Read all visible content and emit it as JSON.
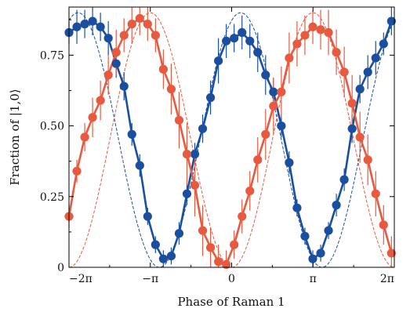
{
  "chart_data": {
    "type": "line",
    "title": "",
    "xlabel": "Phase of Raman 1",
    "ylabel": "Fraction of |1,0⟩",
    "xlim": [
      -6.2832,
      6.2832
    ],
    "ylim": [
      0,
      0.92
    ],
    "x_ticks": [
      {
        "value": -6.2832,
        "label": "−2π"
      },
      {
        "value": -3.1416,
        "label": "−π"
      },
      {
        "value": 0,
        "label": "0"
      },
      {
        "value": 3.1416,
        "label": "π"
      },
      {
        "value": 6.2832,
        "label": "2π"
      }
    ],
    "y_ticks": [
      {
        "value": 0,
        "label": "0"
      },
      {
        "value": 0.25,
        "label": "0.25"
      },
      {
        "value": 0.5,
        "label": "0.50"
      },
      {
        "value": 0.75,
        "label": "0.75"
      }
    ],
    "grid": false,
    "legend": "none",
    "series": [
      {
        "color": "#1a4fa0",
        "x": [
          -6.283,
          -5.979,
          -5.675,
          -5.372,
          -5.068,
          -4.764,
          -4.46,
          -4.157,
          -3.853,
          -3.549,
          -3.245,
          -2.942,
          -2.638,
          -2.334,
          -2.03,
          -1.727,
          -1.423,
          -1.119,
          -0.815,
          -0.511,
          -0.208,
          0.096,
          0.4,
          0.704,
          1.007,
          1.311,
          1.615,
          1.919,
          2.223,
          2.526,
          2.83,
          3.134,
          3.438,
          3.741,
          4.045,
          4.349,
          4.653,
          4.956,
          5.26,
          5.564,
          5.868,
          6.172
        ],
        "y": [
          0.83,
          0.85,
          0.86,
          0.87,
          0.85,
          0.81,
          0.72,
          0.64,
          0.47,
          0.36,
          0.18,
          0.08,
          0.03,
          0.04,
          0.12,
          0.26,
          0.4,
          0.49,
          0.6,
          0.73,
          0.8,
          0.81,
          0.83,
          0.8,
          0.76,
          0.68,
          0.62,
          0.5,
          0.37,
          0.21,
          0.11,
          0.03,
          0.05,
          0.13,
          0.22,
          0.31,
          0.49,
          0.63,
          0.69,
          0.74,
          0.79,
          0.87
        ],
        "err": [
          0.04,
          0.06,
          0.05,
          0.05,
          0.05,
          0.06,
          0.05,
          0.05,
          0.04,
          0.04,
          0.03,
          0.03,
          0.03,
          0.03,
          0.04,
          0.04,
          0.04,
          0.05,
          0.06,
          0.08,
          0.06,
          0.05,
          0.06,
          0.06,
          0.07,
          0.07,
          0.05,
          0.04,
          0.04,
          0.03,
          0.03,
          0.03,
          0.03,
          0.03,
          0.04,
          0.04,
          0.05,
          0.05,
          0.06,
          0.06,
          0.04,
          0.05
        ]
      },
      {
        "color": "#e85a40",
        "x": [
          -6.283,
          -5.979,
          -5.675,
          -5.372,
          -5.068,
          -4.764,
          -4.46,
          -4.157,
          -3.853,
          -3.549,
          -3.245,
          -2.942,
          -2.638,
          -2.334,
          -2.03,
          -1.727,
          -1.423,
          -1.119,
          -0.815,
          -0.511,
          -0.208,
          0.096,
          0.4,
          0.704,
          1.007,
          1.311,
          1.615,
          1.919,
          2.223,
          2.526,
          2.83,
          3.134,
          3.438,
          3.741,
          4.045,
          4.349,
          4.653,
          4.956,
          5.26,
          5.564,
          5.868,
          6.172
        ],
        "y": [
          0.18,
          0.34,
          0.46,
          0.53,
          0.59,
          0.68,
          0.76,
          0.82,
          0.86,
          0.88,
          0.86,
          0.82,
          0.7,
          0.63,
          0.52,
          0.4,
          0.29,
          0.13,
          0.07,
          0.02,
          0.01,
          0.08,
          0.18,
          0.27,
          0.38,
          0.47,
          0.57,
          0.62,
          0.74,
          0.79,
          0.82,
          0.85,
          0.84,
          0.83,
          0.76,
          0.69,
          0.58,
          0.46,
          0.38,
          0.26,
          0.15,
          0.05
        ],
        "err": [
          0.04,
          0.04,
          0.05,
          0.07,
          0.07,
          0.07,
          0.08,
          0.06,
          0.07,
          0.06,
          0.06,
          0.06,
          0.07,
          0.09,
          0.1,
          0.11,
          0.11,
          0.09,
          0.07,
          0.06,
          0.05,
          0.05,
          0.06,
          0.07,
          0.08,
          0.09,
          0.1,
          0.09,
          0.09,
          0.08,
          0.07,
          0.06,
          0.07,
          0.08,
          0.08,
          0.09,
          0.1,
          0.09,
          0.09,
          0.08,
          0.07,
          0.06
        ]
      }
    ],
    "theory_curves": [
      {
        "color": "#1a4fa0",
        "amplitude": 0.9,
        "peak_phase": 0.35
      },
      {
        "color": "#e85a40",
        "amplitude": 0.9,
        "peak_phase": -3.1416
      }
    ]
  }
}
